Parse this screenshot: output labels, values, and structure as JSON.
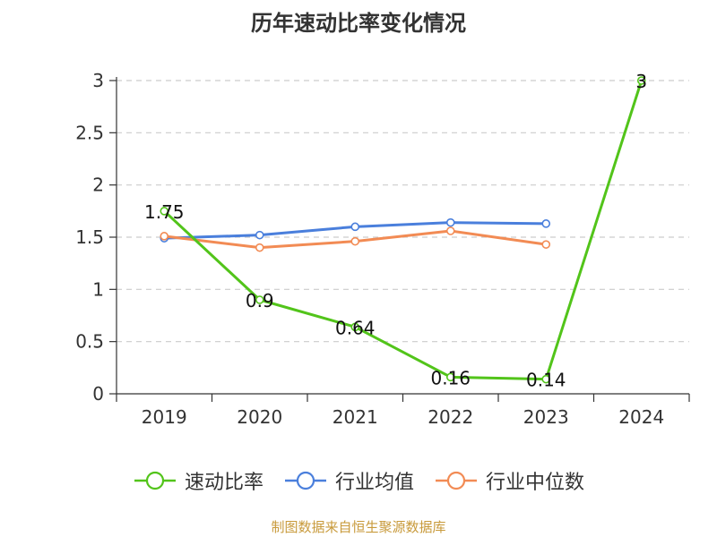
{
  "title": "历年速动比率变化情况",
  "source": "制图数据来自恒生聚源数据库",
  "chart_data": {
    "type": "line",
    "title": "历年速动比率变化情况",
    "x": [
      "2019",
      "2020",
      "2021",
      "2022",
      "2023",
      "2024"
    ],
    "ylim": [
      0,
      3
    ],
    "yticks": [
      "0",
      "0.5",
      "1",
      "1.5",
      "2",
      "2.5",
      "3"
    ],
    "grid": true,
    "legend_position": "bottom",
    "series": [
      {
        "name": "速动比率",
        "color": "#52c41a",
        "values": [
          1.75,
          0.9,
          0.64,
          0.16,
          0.14,
          3
        ],
        "labels": [
          "1.75",
          "0.9",
          "0.64",
          "0.16",
          "0.14",
          "3"
        ]
      },
      {
        "name": "行业均值",
        "color": "#4a7fdc",
        "values": [
          1.49,
          1.52,
          1.6,
          1.64,
          1.63,
          null
        ]
      },
      {
        "name": "行业中位数",
        "color": "#f28b54",
        "values": [
          1.51,
          1.4,
          1.46,
          1.56,
          1.43,
          null
        ]
      }
    ]
  }
}
